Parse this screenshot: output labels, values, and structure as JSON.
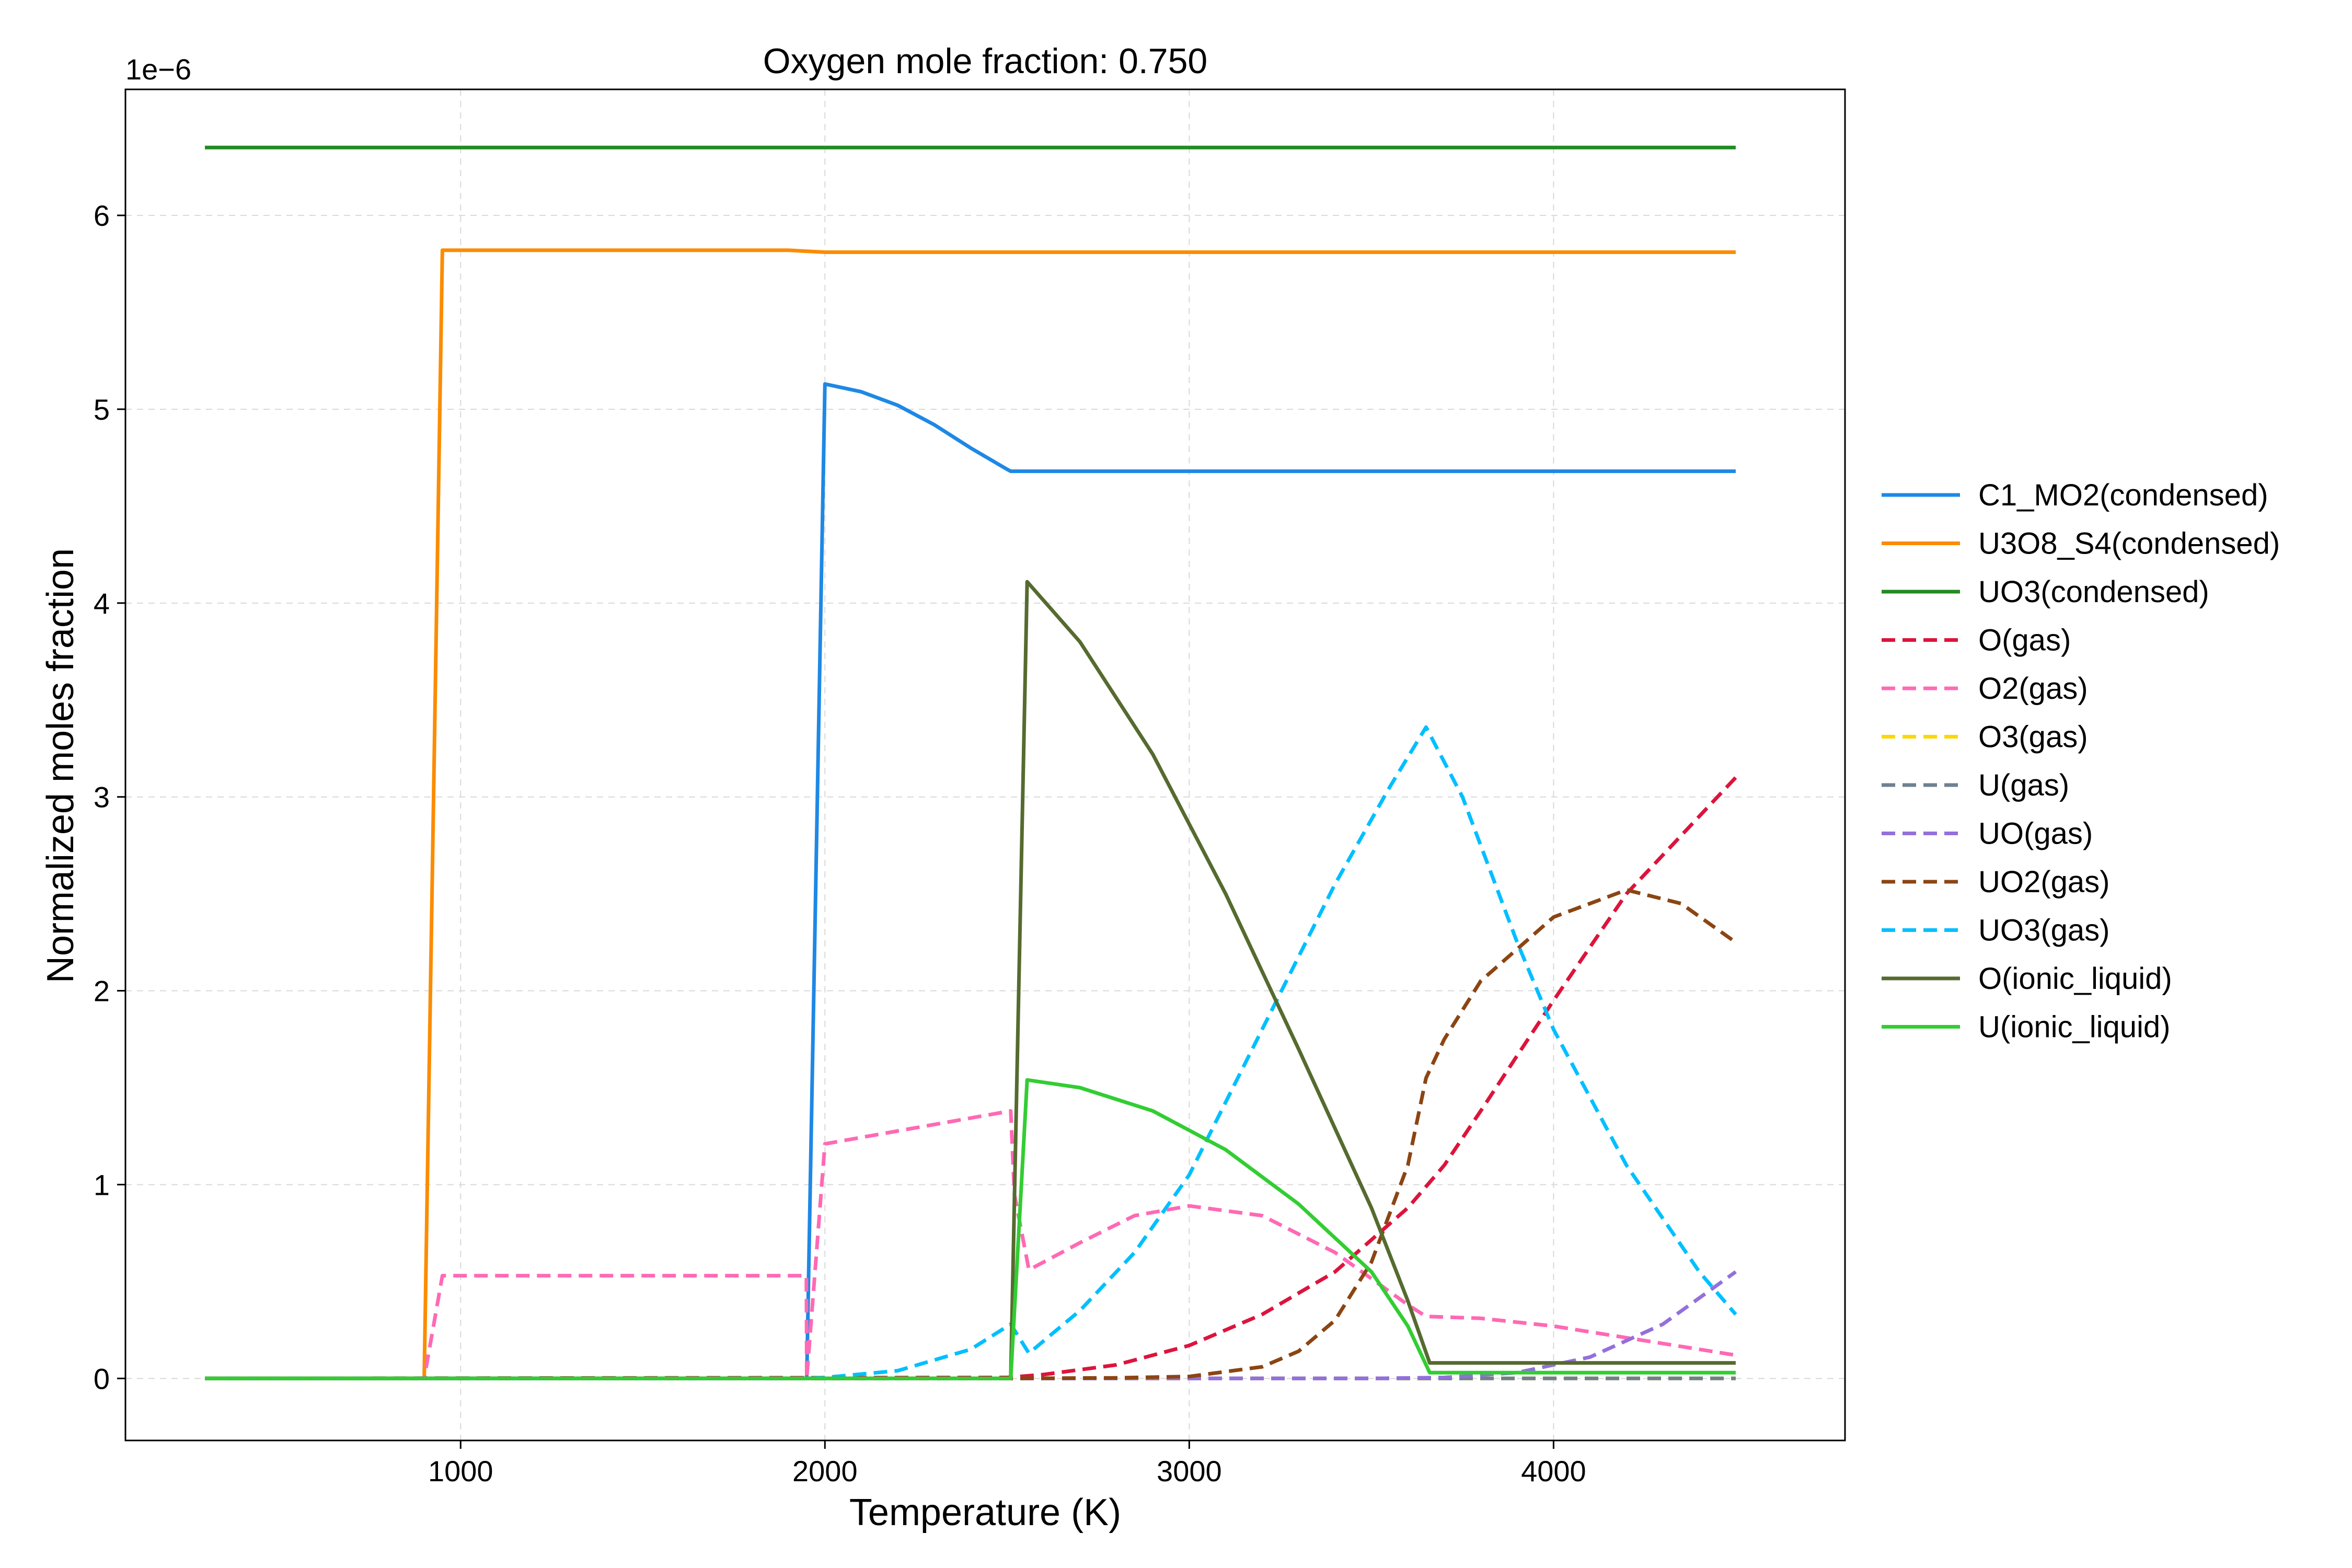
{
  "chart_data": {
    "type": "line",
    "title": "Oxygen mole fraction: 0.750",
    "xlabel": "Temperature (K)",
    "ylabel": "Normalized moles fraction",
    "y_offset_label": "1e−6",
    "xlim": [
      80,
      4800
    ],
    "ylim": [
      -0.32,
      6.65
    ],
    "xticks": [
      1000,
      2000,
      3000,
      4000
    ],
    "yticks": [
      0,
      1,
      2,
      3,
      4,
      5,
      6
    ],
    "grid": true,
    "legend_position": "right, outside",
    "series": [
      {
        "name": "C1_MO2(condensed)",
        "color": "#1e88e5",
        "dash": "solid",
        "x": [
          298,
          1949,
          1950,
          2000,
          2100,
          2200,
          2300,
          2400,
          2500,
          2510,
          3000,
          4000,
          4500
        ],
        "y": [
          0,
          0,
          0,
          5.13,
          5.09,
          5.02,
          4.92,
          4.8,
          4.69,
          4.68,
          4.68,
          4.68,
          4.68
        ]
      },
      {
        "name": "U3O8_S4(condensed)",
        "color": "#fb8c00",
        "dash": "solid",
        "x": [
          298,
          899,
          900,
          950,
          1500,
          1900,
          2000,
          3000,
          4000,
          4500
        ],
        "y": [
          0,
          0,
          0,
          5.82,
          5.82,
          5.82,
          5.81,
          5.81,
          5.81,
          5.81
        ]
      },
      {
        "name": "UO3(condensed)",
        "color": "#228b22",
        "dash": "solid",
        "x": [
          298,
          1000,
          2000,
          3000,
          4000,
          4500
        ],
        "y": [
          6.35,
          6.35,
          6.35,
          6.35,
          6.35,
          6.35
        ]
      },
      {
        "name": "O(gas)",
        "color": "#dc143c",
        "dash": "dashed",
        "x": [
          298,
          2500,
          2600,
          2800,
          3000,
          3200,
          3400,
          3600,
          3700,
          3800,
          4000,
          4200,
          4500
        ],
        "y": [
          0,
          0.005,
          0.02,
          0.07,
          0.17,
          0.33,
          0.55,
          0.88,
          1.1,
          1.38,
          1.95,
          2.5,
          3.1
        ]
      },
      {
        "name": "O2(gas)",
        "color": "#ff69b4",
        "dash": "dashed",
        "x": [
          298,
          899,
          900,
          950,
          1949,
          1950,
          2000,
          2510,
          2520,
          2560,
          2700,
          2850,
          3000,
          3200,
          3400,
          3600,
          3650,
          3800,
          4000,
          4200,
          4500
        ],
        "y": [
          0,
          0,
          0,
          0.53,
          0.53,
          0,
          1.21,
          1.38,
          0.95,
          0.56,
          0.7,
          0.84,
          0.89,
          0.84,
          0.65,
          0.38,
          0.32,
          0.31,
          0.27,
          0.21,
          0.12
        ]
      },
      {
        "name": "O3(gas)",
        "color": "#ffd700",
        "dash": "dashed",
        "x": [
          298,
          2000,
          3000,
          4000,
          4500
        ],
        "y": [
          0,
          0,
          0,
          0,
          0
        ]
      },
      {
        "name": "U(gas)",
        "color": "#708090",
        "dash": "dashed",
        "x": [
          298,
          2000,
          3000,
          4000,
          4500
        ],
        "y": [
          0,
          0,
          0,
          0,
          0
        ]
      },
      {
        "name": "UO(gas)",
        "color": "#9370db",
        "dash": "dashed",
        "x": [
          298,
          3500,
          3700,
          3900,
          4100,
          4300,
          4500
        ],
        "y": [
          0,
          0,
          0.005,
          0.03,
          0.11,
          0.28,
          0.55
        ]
      },
      {
        "name": "UO2(gas)",
        "color": "#8b4513",
        "dash": "dashed",
        "x": [
          298,
          2500,
          2800,
          3000,
          3200,
          3300,
          3400,
          3500,
          3600,
          3650,
          3700,
          3800,
          4000,
          4200,
          4350,
          4500
        ],
        "y": [
          0,
          0,
          0.003,
          0.01,
          0.06,
          0.14,
          0.3,
          0.6,
          1.1,
          1.55,
          1.75,
          2.05,
          2.38,
          2.52,
          2.45,
          2.25
        ]
      },
      {
        "name": "UO3(gas)",
        "color": "#00bfff",
        "dash": "dashed",
        "x": [
          298,
          1950,
          2000,
          2200,
          2400,
          2510,
          2560,
          2700,
          2850,
          3000,
          3200,
          3400,
          3550,
          3650,
          3750,
          3900,
          4000,
          4200,
          4400,
          4500
        ],
        "y": [
          0,
          0,
          0.005,
          0.04,
          0.15,
          0.28,
          0.13,
          0.35,
          0.65,
          1.05,
          1.8,
          2.55,
          3.05,
          3.36,
          3.0,
          2.25,
          1.8,
          1.1,
          0.55,
          0.33
        ]
      },
      {
        "name": "O(ionic_liquid)",
        "color": "#556b2f",
        "dash": "solid",
        "x": [
          298,
          2510,
          2555,
          2700,
          2900,
          3100,
          3300,
          3500,
          3600,
          3660,
          4000,
          4500
        ],
        "y": [
          0,
          0,
          4.11,
          3.8,
          3.22,
          2.5,
          1.7,
          0.88,
          0.4,
          0.08,
          0.08,
          0.08
        ]
      },
      {
        "name": "U(ionic_liquid)",
        "color": "#32cd32",
        "dash": "solid",
        "x": [
          298,
          2510,
          2555,
          2700,
          2900,
          3100,
          3300,
          3500,
          3600,
          3660,
          4000,
          4500
        ],
        "y": [
          0,
          0,
          1.54,
          1.5,
          1.38,
          1.18,
          0.9,
          0.55,
          0.27,
          0.03,
          0.03,
          0.03
        ]
      }
    ]
  }
}
